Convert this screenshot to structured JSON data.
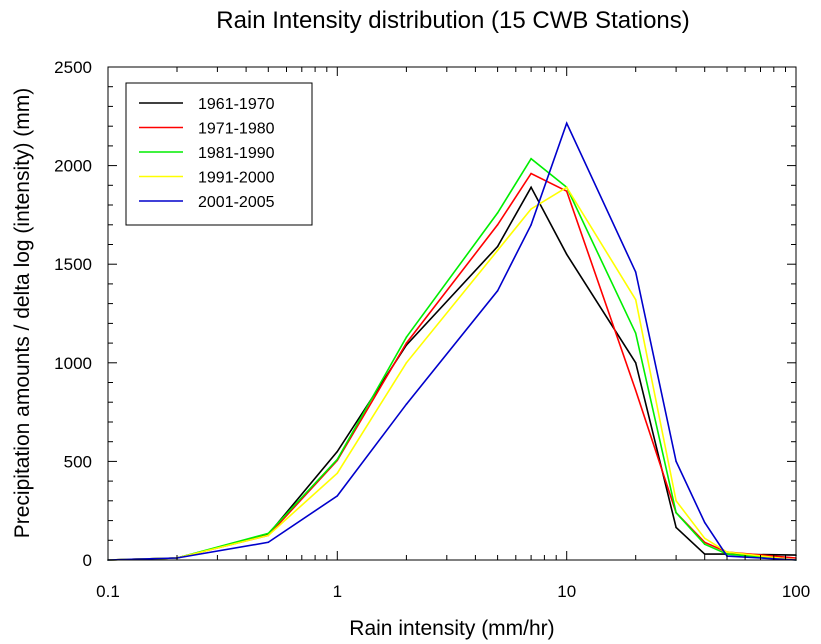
{
  "chart_data": {
    "type": "line",
    "title": "Rain Intensity distribution (15 CWB Stations)",
    "xlabel": "Rain intensity (mm/hr)",
    "ylabel": "Precipitation amounts / delta log (intensity)  (mm)",
    "xscale": "log",
    "xlim": [
      0.1,
      100
    ],
    "ylim": [
      0,
      2500
    ],
    "xticks": [
      0.1,
      1,
      10,
      100
    ],
    "xtick_labels": [
      "0.1",
      "1",
      "10",
      "100"
    ],
    "yticks": [
      0,
      500,
      1000,
      1500,
      2000,
      2500
    ],
    "ytick_labels": [
      "0",
      "500",
      "1000",
      "1500",
      "2000",
      "2500"
    ],
    "grid": false,
    "legend_position": "top-left",
    "x": [
      0.1,
      0.2,
      0.5,
      1,
      2,
      5,
      7,
      10,
      20,
      30,
      40,
      50,
      100
    ],
    "series": [
      {
        "name": "1961-1970",
        "color": "#000000",
        "values": [
          0,
          10,
          130,
          550,
          1090,
          1590,
          1890,
          1550,
          1000,
          165,
          30,
          30,
          25
        ]
      },
      {
        "name": "1971-1980",
        "color": "#ff0000",
        "values": [
          0,
          10,
          125,
          505,
          1100,
          1700,
          1960,
          1870,
          860,
          240,
          90,
          40,
          10
        ]
      },
      {
        "name": "1981-1990",
        "color": "#00ee00",
        "values": [
          0,
          10,
          135,
          510,
          1130,
          1760,
          2035,
          1890,
          1150,
          240,
          80,
          30,
          0
        ]
      },
      {
        "name": "1991-2000",
        "color": "#ffff00",
        "values": [
          0,
          10,
          125,
          440,
          1000,
          1570,
          1780,
          1890,
          1320,
          300,
          110,
          40,
          0
        ]
      },
      {
        "name": "2001-2005",
        "color": "#0000cc",
        "values": [
          0,
          10,
          90,
          325,
          790,
          1365,
          1700,
          2215,
          1460,
          500,
          190,
          20,
          0
        ]
      }
    ]
  }
}
